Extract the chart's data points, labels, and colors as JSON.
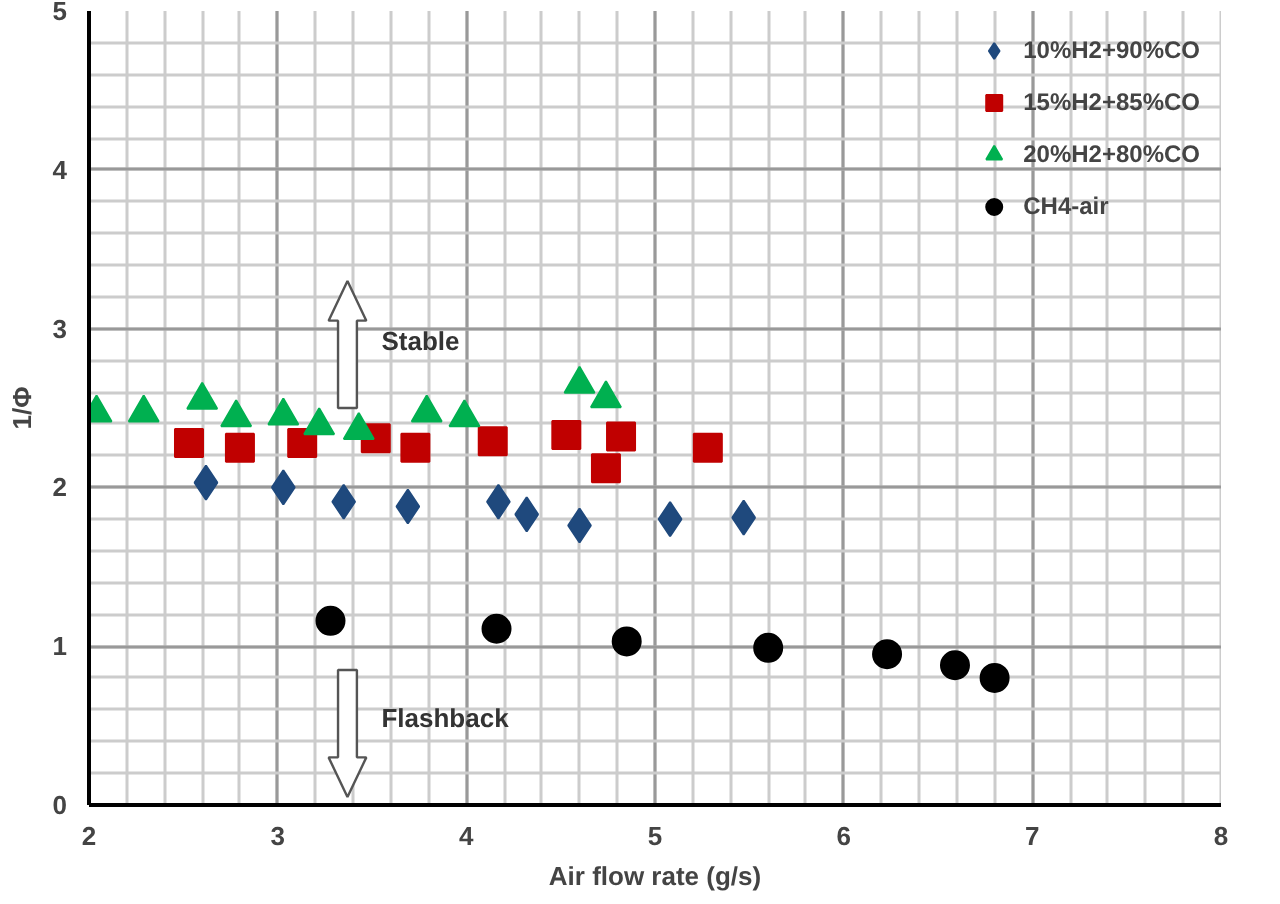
{
  "chart_data": {
    "type": "scatter",
    "xlabel": "Air flow rate (g/s)",
    "ylabel": "1/Φ",
    "xlim": [
      2,
      8
    ],
    "ylim": [
      0,
      5
    ],
    "xticks": [
      2,
      3,
      4,
      5,
      6,
      7,
      8
    ],
    "yticks": [
      0,
      1,
      2,
      3,
      4,
      5
    ],
    "grid": true,
    "legend": "top right",
    "annotations": [
      "Stable",
      "Flashback"
    ],
    "series": [
      {
        "name": "10%H2+90%CO",
        "color": "#1f497d",
        "marker": "diamond",
        "x": [
          2.62,
          3.03,
          3.35,
          3.69,
          4.17,
          4.32,
          4.6,
          5.08,
          5.47
        ],
        "values": [
          2.03,
          2.0,
          1.91,
          1.88,
          1.91,
          1.83,
          1.76,
          1.8,
          1.81
        ]
      },
      {
        "name": "15%H2+85%CO",
        "color": "#c00000",
        "marker": "square",
        "x": [
          2.53,
          2.8,
          3.13,
          3.52,
          3.73,
          4.14,
          4.53,
          4.74,
          4.82,
          5.28
        ],
        "values": [
          2.28,
          2.25,
          2.28,
          2.31,
          2.25,
          2.29,
          2.33,
          2.12,
          2.32,
          2.25
        ]
      },
      {
        "name": "20%H2+80%CO",
        "color": "#00b050",
        "marker": "triangle",
        "x": [
          2.04,
          2.29,
          2.6,
          2.78,
          3.03,
          3.22,
          3.43,
          3.79,
          3.99,
          4.6,
          4.74
        ],
        "values": [
          2.47,
          2.47,
          2.55,
          2.44,
          2.45,
          2.39,
          2.36,
          2.47,
          2.44,
          2.65,
          2.56
        ]
      },
      {
        "name": "CH4-air",
        "color": "#000000",
        "marker": "circle",
        "x": [
          3.28,
          4.16,
          4.85,
          5.6,
          6.23,
          6.59,
          6.8
        ],
        "values": [
          1.16,
          1.11,
          1.03,
          0.99,
          0.95,
          0.88,
          0.8
        ]
      }
    ]
  }
}
